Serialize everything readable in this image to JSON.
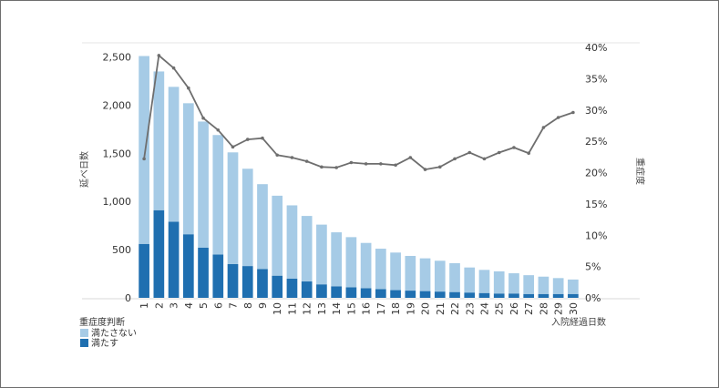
{
  "chart_data": {
    "type": "bar",
    "x": [
      1,
      2,
      3,
      4,
      5,
      6,
      7,
      8,
      9,
      10,
      11,
      12,
      13,
      14,
      15,
      16,
      17,
      18,
      19,
      20,
      21,
      22,
      23,
      24,
      25,
      26,
      27,
      28,
      29,
      30
    ],
    "xlabel": "入院経過日数",
    "ylabel": "延べ日数",
    "y2label": "重症度",
    "ylim": [
      0,
      2600
    ],
    "y2lim": [
      0,
      0.4
    ],
    "yticks": [
      "0",
      "500",
      "1,000",
      "1,500",
      "2,000",
      "2,500"
    ],
    "y2ticks": [
      "0%",
      "5%",
      "10%",
      "15%",
      "20%",
      "25%",
      "30%",
      "35%",
      "40%"
    ],
    "legend": {
      "title": "重症度判断",
      "placement": "bottom-left"
    },
    "series": [
      {
        "name": "満たさない",
        "kind": "stacked-bar",
        "color": "#a6cbe6",
        "values": [
          1950,
          1440,
          1400,
          1360,
          1310,
          1240,
          1160,
          1010,
          880,
          830,
          760,
          680,
          620,
          560,
          520,
          470,
          420,
          390,
          360,
          340,
          320,
          300,
          260,
          240,
          230,
          210,
          195,
          180,
          165,
          150
        ]
      },
      {
        "name": "満たす",
        "kind": "stacked-bar",
        "color": "#1f6fb0",
        "values": [
          560,
          910,
          790,
          660,
          520,
          450,
          350,
          330,
          300,
          230,
          200,
          170,
          140,
          120,
          110,
          100,
          90,
          80,
          75,
          70,
          65,
          60,
          55,
          50,
          45,
          45,
          40,
          40,
          40,
          40
        ]
      },
      {
        "kind": "line",
        "axis": "right",
        "color": "#6e6e6e",
        "values": [
          0.222,
          0.387,
          0.367,
          0.335,
          0.287,
          0.268,
          0.241,
          0.253,
          0.255,
          0.228,
          0.224,
          0.218,
          0.209,
          0.208,
          0.216,
          0.214,
          0.214,
          0.212,
          0.224,
          0.205,
          0.209,
          0.222,
          0.232,
          0.222,
          0.232,
          0.24,
          0.231,
          0.272,
          0.288,
          0.296
        ]
      }
    ]
  }
}
